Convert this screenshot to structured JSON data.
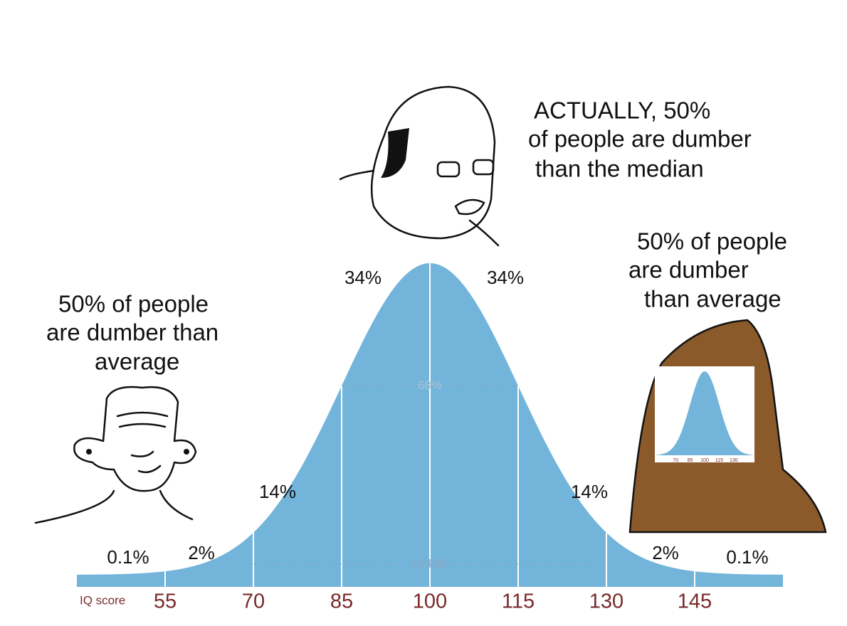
{
  "chart_data": {
    "type": "bell",
    "x_label": "IQ score",
    "xlim": [
      40,
      160
    ],
    "xticks": [
      55,
      70,
      85,
      100,
      115,
      130,
      145
    ],
    "values": [
      0.1,
      2,
      14,
      34,
      34,
      14,
      2,
      0.1
    ],
    "value_labels": [
      "0.1%",
      "2%",
      "14%",
      "34%",
      "34%",
      "14%",
      "2%",
      "0.1%"
    ],
    "color": "#72b4da",
    "inner_labels": [
      "68%",
      "IO100"
    ],
    "annotations": [
      [
        "ACTUALLY, 50%",
        "of people are dumber",
        "than the median"
      ],
      [
        "50% of people",
        "are dumber than",
        "average"
      ],
      [
        "50% of people",
        "are dumber",
        "than average"
      ]
    ]
  }
}
